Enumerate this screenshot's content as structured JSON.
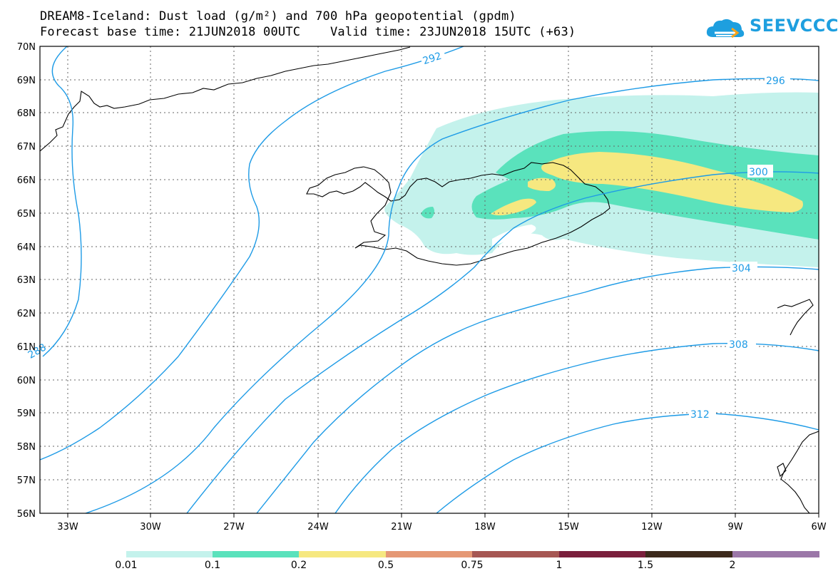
{
  "header": {
    "title_line1": "DREAM8-Iceland: Dust load (g/m²) and 700 hPa geopotential (gpdm)",
    "title_line2": "Forecast base time: 21JUN2018 00UTC    Valid time: 23JUN2018 15UTC (+63)"
  },
  "logo": {
    "text": "SEEVCCC",
    "color": "#1e9fdf"
  },
  "map": {
    "lat_labels": [
      "70N",
      "69N",
      "68N",
      "67N",
      "66N",
      "65N",
      "64N",
      "63N",
      "62N",
      "61N",
      "60N",
      "59N",
      "58N",
      "57N",
      "56N"
    ],
    "lon_labels": [
      "33W",
      "30W",
      "27W",
      "24W",
      "21W",
      "18W",
      "15W",
      "12W",
      "9W",
      "6W"
    ],
    "contour_labels": [
      "292",
      "296",
      "300",
      "304",
      "308",
      "312",
      "288"
    ],
    "contour_color": "#1e9be6"
  },
  "colorbar": {
    "labels": [
      "0.01",
      "0.1",
      "0.2",
      "0.5",
      "0.75",
      "1",
      "1.5",
      "2"
    ],
    "colors": [
      "#c4f2ec",
      "#5ae2bc",
      "#f6e880",
      "#e59875",
      "#a65753",
      "#7a1f3c",
      "#3c2a1c",
      "#9b77a8"
    ]
  }
}
